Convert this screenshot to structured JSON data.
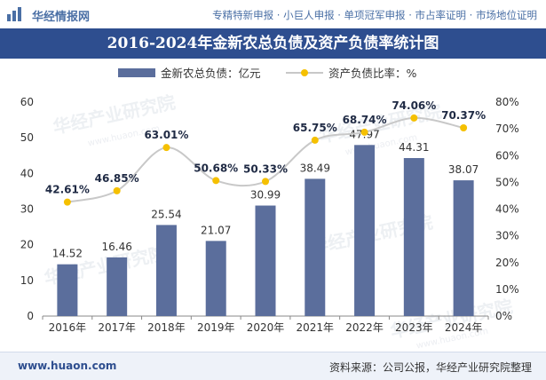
{
  "header": {
    "logo_text": "华经情报网",
    "tagline": "专精特新申报 · 小巨人申报 · 单项冠军申报 · 市占率证明 · 市场地位证明"
  },
  "title": "2016-2024年金新农总负债及资产负债率统计图",
  "footer": {
    "url": "www.huaon.com",
    "source": "资料来源：公司公报，华经产业研究院整理"
  },
  "chart_data": {
    "type": "bar+line",
    "categories": [
      "2016年",
      "2017年",
      "2018年",
      "2019年",
      "2020年",
      "2021年",
      "2022年",
      "2023年",
      "2024年"
    ],
    "series": [
      {
        "name": "金新农总负债：亿元",
        "type": "bar",
        "axis": "left",
        "values": [
          14.52,
          16.46,
          25.54,
          21.07,
          30.99,
          38.49,
          47.97,
          44.31,
          38.07
        ],
        "labels": [
          "14.52",
          "16.46",
          "25.54",
          "21.07",
          "30.99",
          "38.49",
          "47.97",
          "44.31",
          "38.07"
        ],
        "color": "#5b6e9c"
      },
      {
        "name": "资产负债比率：%",
        "type": "line",
        "axis": "right",
        "values": [
          42.61,
          46.85,
          63.01,
          50.68,
          50.33,
          65.75,
          68.74,
          74.06,
          70.37
        ],
        "labels": [
          "42.61%",
          "46.85%",
          "63.01%",
          "50.68%",
          "50.33%",
          "65.75%",
          "68.74%",
          "74.06%",
          "70.37%"
        ],
        "line_color": "#c8c8c8",
        "marker_color": "#f5c000"
      }
    ],
    "y_left": {
      "min": 0,
      "max": 60,
      "ticks": [
        "0",
        "10",
        "20",
        "30",
        "40",
        "50",
        "60"
      ]
    },
    "y_right": {
      "min": 0,
      "max": 80,
      "ticks": [
        "0%",
        "10%",
        "20%",
        "30%",
        "40%",
        "50%",
        "60%",
        "70%",
        "80%"
      ]
    },
    "legend": "top-center",
    "grid": false
  },
  "watermark": "华经产业研究院",
  "watermark_url": "www.huaon.com"
}
